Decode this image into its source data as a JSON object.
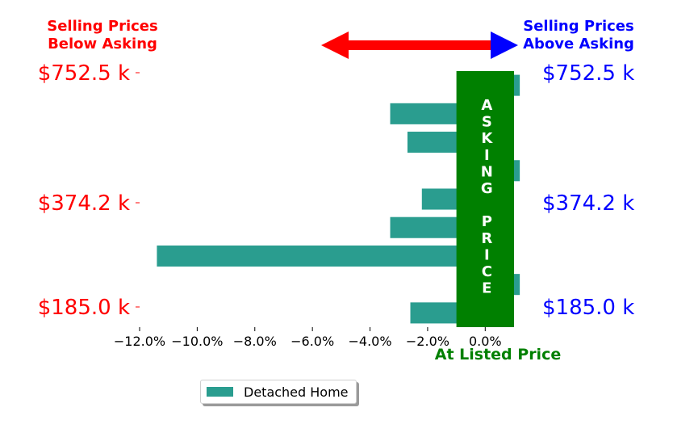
{
  "colors": {
    "bar": "#2a9d8f",
    "asking_band": "#008000",
    "below_text": "#ff0000",
    "above_text": "#0000ff",
    "at_listed_text": "#008000"
  },
  "header": {
    "below_asking_line1": "Selling Prices",
    "below_asking_line2": "Below Asking",
    "above_asking_line1": "Selling Prices",
    "above_asking_line2": "Above Asking"
  },
  "band": {
    "letters": [
      "A",
      "S",
      "K",
      "I",
      "N",
      "G",
      "",
      "P",
      "R",
      "I",
      "C",
      "E"
    ],
    "x_range": [
      -1.0,
      1.0
    ]
  },
  "at_listed_label": "At Listed Price",
  "chart_data": {
    "type": "bar",
    "orientation": "horizontal",
    "xlim": [
      -12.0,
      1.0
    ],
    "x_ticks": [
      "−12.0%",
      "−10.0%",
      "−8.0%",
      "−6.0%",
      "−4.0%",
      "−2.0%",
      "0.0%"
    ],
    "x_tick_values": [
      -12,
      -10,
      -8,
      -6,
      -4,
      -2,
      0
    ],
    "left_tick_labels": [
      "$752.5 k",
      "$374.2 k",
      "$185.0 k"
    ],
    "right_tick_labels": [
      "$752.5 k",
      "$374.2 k",
      "$185.0 k"
    ],
    "series": [
      {
        "name": "Detached Home",
        "values": [
          1.2,
          -3.3,
          -2.7,
          1.2,
          -2.2,
          -3.3,
          -11.4,
          1.2,
          -2.6
        ]
      }
    ],
    "legend": "bottom-center",
    "grid": false
  },
  "legend": {
    "label": "Detached Home"
  }
}
